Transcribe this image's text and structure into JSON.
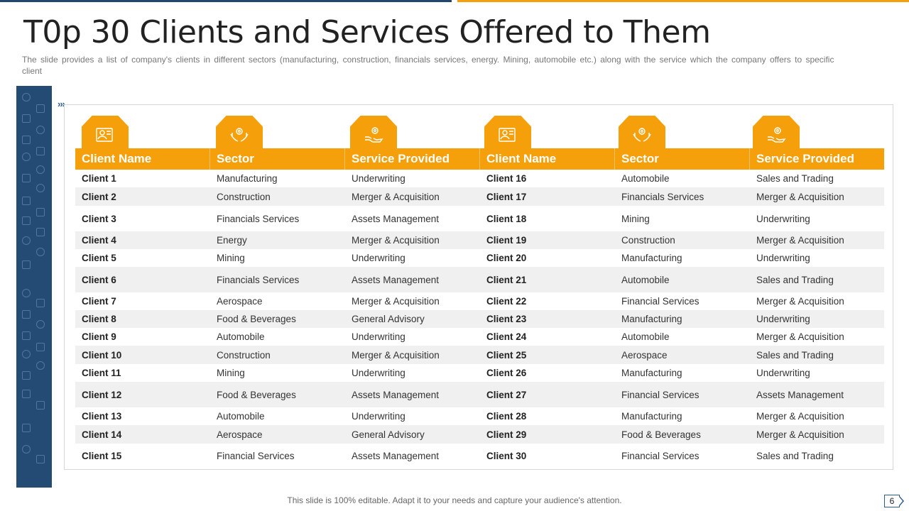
{
  "slide": {
    "title": "T0p 30 Clients and Services Offered to Them",
    "subtitle": "The slide provides  a list of company's clients in different  sectors (manufacturing,  construction, financials services, energy. Mining, automobile etc.) along with the service which the company offers to specific client",
    "footer": "This slide is 100% editable. Adapt it to your needs and capture your audience's attention.",
    "page_number": "6"
  },
  "colors": {
    "accent": "#f5a00b",
    "navy": "#234b73",
    "row_alt": "#f0f0f0"
  },
  "icons": [
    "certificate-icon",
    "hands-gear-icon",
    "hand-gear-icon",
    "certificate-icon",
    "hands-gear-icon",
    "hand-gear-icon"
  ],
  "table": {
    "headers": [
      "Client Name",
      "Sector",
      "Service Provided",
      "Client Name",
      "Sector",
      "Service Provided"
    ],
    "rows": [
      [
        "Client 1",
        "Manufacturing",
        "Underwriting",
        "Client 16",
        "Automobile",
        "Sales and Trading"
      ],
      [
        "Client 2",
        "Construction",
        "Merger  & Acquisition",
        "Client 17",
        "Financials Services",
        "Merger  & Acquisition"
      ],
      [
        "Client 3",
        "Financials Services",
        "Assets Management",
        "Client 18",
        "Mining",
        "Underwriting"
      ],
      [
        "Client 4",
        "Energy",
        "Merger  & Acquisition",
        "Client 19",
        "Construction",
        "Merger  & Acquisition"
      ],
      [
        "Client 5",
        "Mining",
        "Underwriting",
        "Client 20",
        "Manufacturing",
        "Underwriting"
      ],
      [
        "Client 6",
        "Financials Services",
        "Assets Management",
        "Client 21",
        "Automobile",
        "Sales and Trading"
      ],
      [
        "Client 7",
        "Aerospace",
        "Merger  & Acquisition",
        "Client 22",
        "Financial Services",
        "Merger  & Acquisition"
      ],
      [
        "Client 8",
        "Food  & Beverages",
        "General  Advisory",
        "Client 23",
        "Manufacturing",
        "Underwriting"
      ],
      [
        "Client 9",
        "Automobile",
        "Underwriting",
        "Client 24",
        "Automobile",
        "Merger  & Acquisition"
      ],
      [
        "Client 10",
        "Construction",
        "Merger  & Acquisition",
        "Client 25",
        "Aerospace",
        "Sales and Trading"
      ],
      [
        "Client 11",
        "Mining",
        "Underwriting",
        "Client 26",
        "Manufacturing",
        "Underwriting"
      ],
      [
        "Client 12",
        "Food  & Beverages",
        "Assets Management",
        "Client 27",
        "Financial Services",
        "Assets Management"
      ],
      [
        "Client 13",
        "Automobile",
        "Underwriting",
        "Client 28",
        "Manufacturing",
        "Merger  & Acquisition"
      ],
      [
        "Client 14",
        "Aerospace",
        "General  Advisory",
        "Client 29",
        "Food  & Beverages",
        "Merger  & Acquisition"
      ],
      [
        "Client 15",
        "Financial Services",
        "Assets Management",
        "Client 30",
        "Financial Services",
        "Sales and Trading"
      ]
    ]
  }
}
